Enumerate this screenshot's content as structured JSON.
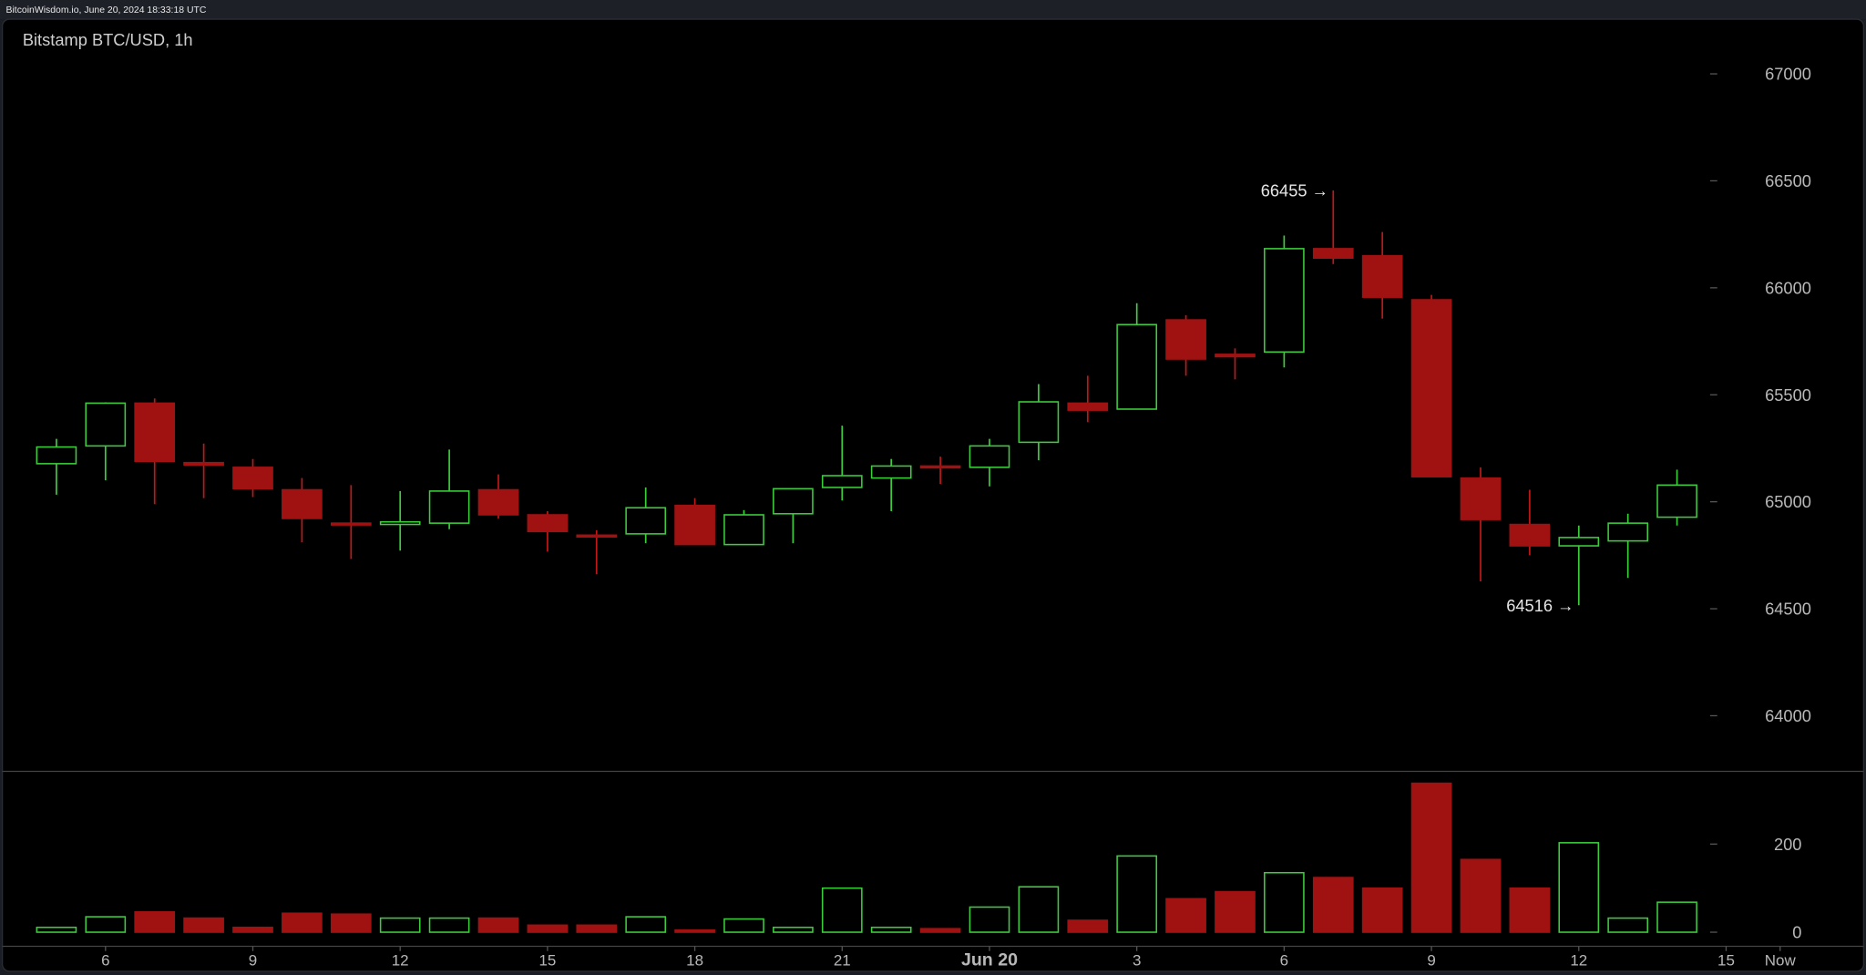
{
  "header": {
    "text": "BitcoinWisdom.io, June 20, 2024 18:33:18 UTC"
  },
  "chart_data": {
    "type": "candlestick",
    "title": "Bitstamp BTC/USD, 1h",
    "x": [
      5,
      6,
      7,
      8,
      9,
      10,
      11,
      12,
      13,
      14,
      15,
      16,
      17,
      18,
      19,
      20,
      21,
      22,
      23,
      24,
      25,
      26,
      27,
      28,
      29,
      30,
      31,
      32,
      33,
      34,
      35,
      36,
      37,
      38
    ],
    "open": [
      65178,
      65261,
      65461,
      65183,
      65161,
      65056,
      64900,
      64894,
      64900,
      65056,
      64939,
      64844,
      64850,
      64983,
      64800,
      64944,
      65067,
      65111,
      65167,
      65161,
      65278,
      65461,
      65433,
      65850,
      65689,
      65700,
      66183,
      66150,
      65944,
      65111,
      64894,
      64794,
      64817,
      64928
    ],
    "high": [
      65294,
      65465,
      65483,
      65272,
      65200,
      65111,
      65078,
      65050,
      65244,
      65128,
      64956,
      64867,
      65067,
      65017,
      64961,
      65061,
      65356,
      65200,
      65211,
      65294,
      65550,
      65589,
      65928,
      65872,
      65717,
      66244,
      66455,
      66261,
      65967,
      65161,
      65056,
      64889,
      64944,
      65150
    ],
    "low": [
      65033,
      65100,
      64989,
      65017,
      65022,
      64811,
      64733,
      64772,
      64872,
      64922,
      64767,
      64661,
      64806,
      64800,
      64800,
      64806,
      65006,
      64956,
      65083,
      65072,
      65194,
      65372,
      65433,
      65589,
      65572,
      65628,
      66111,
      65856,
      65117,
      64628,
      64750,
      64516,
      64644,
      64889
    ],
    "close": [
      65256,
      65461,
      65189,
      65172,
      65061,
      64922,
      64894,
      64906,
      65050,
      64939,
      64861,
      64839,
      64972,
      64800,
      64939,
      65061,
      65122,
      65167,
      65161,
      65261,
      65467,
      65428,
      65828,
      65667,
      65678,
      66183,
      66139,
      65956,
      65117,
      64917,
      64794,
      64833,
      64900,
      65078
    ],
    "volume": [
      11,
      35,
      46,
      32,
      11,
      43,
      41,
      32,
      32,
      32,
      16,
      16,
      35,
      5,
      30,
      11,
      100,
      11,
      8,
      57,
      103,
      27,
      173,
      76,
      92,
      135,
      124,
      100,
      338,
      165,
      100,
      203,
      32,
      68
    ],
    "up_color": "#3ccc3c",
    "down_color": "#a01212",
    "xlim": [
      3.9,
      41.8
    ],
    "xticks": [
      6,
      9,
      12,
      15,
      18,
      21,
      {
        "value": 24,
        "label": "Jun 20"
      },
      {
        "value": 27,
        "label": "3"
      },
      {
        "value": 30,
        "label": "6"
      },
      {
        "value": 33,
        "label": "9"
      },
      {
        "value": 36,
        "label": "12"
      },
      {
        "value": 39,
        "label": "15"
      },
      {
        "value": 40.1,
        "label": "Now"
      }
    ],
    "ylim": [
      63740,
      67250
    ],
    "yticks": [
      64000,
      64500,
      65000,
      65500,
      66000,
      66500,
      67000
    ],
    "volume_ylim": [
      -32,
      365
    ],
    "volume_yticks": [
      0,
      200
    ],
    "annotations": [
      {
        "label": "66455 →",
        "value": 66455,
        "x": 31
      },
      {
        "label": "64516 →",
        "value": 64516,
        "x": 36
      }
    ]
  }
}
